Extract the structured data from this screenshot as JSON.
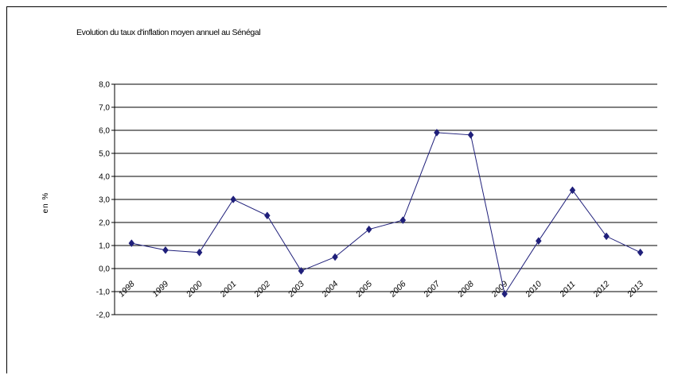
{
  "chart_data": {
    "type": "line",
    "title": "Evolution du taux d'inflation moyen annuel au Sénégal",
    "xlabel": "",
    "ylabel": "en %",
    "categories": [
      "1998",
      "1999",
      "2000",
      "2001",
      "2002",
      "2003",
      "2004",
      "2005",
      "2006",
      "2007",
      "2008",
      "2009",
      "2010",
      "2011",
      "2012",
      "2013"
    ],
    "series": [
      {
        "values": [
          1.1,
          0.8,
          0.7,
          3.0,
          2.3,
          -0.1,
          0.5,
          1.7,
          2.1,
          5.9,
          5.8,
          -1.1,
          1.2,
          3.4,
          1.4,
          0.7
        ]
      }
    ],
    "ylim": [
      -2.0,
      8.0
    ],
    "ytick_step": 1.0,
    "ytick_labels": [
      "8,0",
      "7,0",
      "6,0",
      "5,0",
      "4,0",
      "3,0",
      "2,0",
      "1,0",
      "0,0",
      "-1,0",
      "-2,0"
    ],
    "grid": true,
    "legend": "none",
    "line_color": "#1f1f7a",
    "marker": "diamond"
  }
}
